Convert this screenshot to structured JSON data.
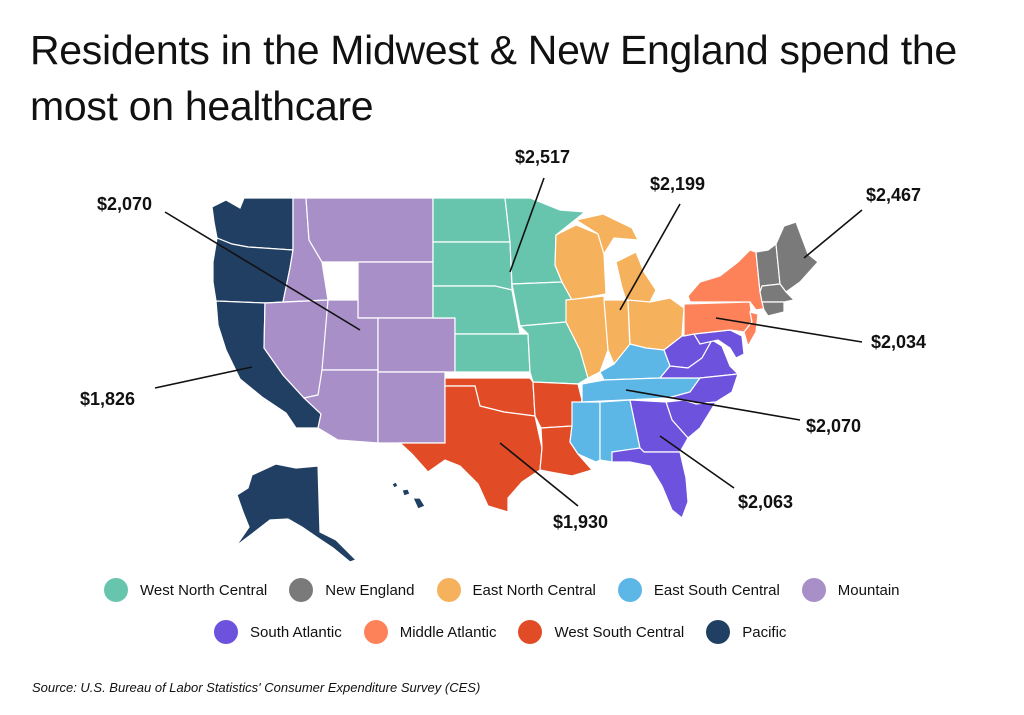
{
  "title": "Residents in the Midwest & New England spend the most on healthcare",
  "source": "Source:  U.S. Bureau of Labor Statistics' Consumer Expenditure Survey (CES)",
  "colors": {
    "west_north_central": "#66c5ac",
    "new_england": "#7a7a7a",
    "east_north_central": "#f5b15c",
    "east_south_central": "#5cb6e6",
    "mountain": "#a98fc8",
    "south_atlantic": "#6c52dc",
    "middle_atlantic": "#fd825a",
    "west_south_central": "#e14c27",
    "pacific": "#213f63"
  },
  "regions": [
    {
      "key": "west_north_central",
      "name": "West North Central",
      "value": "$2,517",
      "color": "#66c5ac"
    },
    {
      "key": "new_england",
      "name": "New England",
      "value": "$2,467",
      "color": "#7a7a7a"
    },
    {
      "key": "east_north_central",
      "name": "East North Central",
      "value": "$2,199",
      "color": "#f5b15c"
    },
    {
      "key": "east_south_central",
      "name": "East South Central",
      "value": "$2,070",
      "color": "#5cb6e6"
    },
    {
      "key": "mountain",
      "name": "Mountain",
      "value": "$2,070",
      "color": "#a98fc8"
    },
    {
      "key": "south_atlantic",
      "name": "South Atlantic",
      "value": "$2,063",
      "color": "#6c52dc"
    },
    {
      "key": "middle_atlantic",
      "name": "Middle Atlantic",
      "value": "$2,034",
      "color": "#fd825a"
    },
    {
      "key": "west_south_central",
      "name": "West South Central",
      "value": "$1,930",
      "color": "#e14c27"
    },
    {
      "key": "pacific",
      "name": "Pacific",
      "value": "$1,826",
      "color": "#213f63"
    }
  ],
  "legend_rows": [
    [
      "west_north_central",
      "new_england",
      "east_north_central",
      "east_south_central",
      "mountain"
    ],
    [
      "south_atlantic",
      "middle_atlantic",
      "west_south_central",
      "pacific"
    ]
  ]
}
